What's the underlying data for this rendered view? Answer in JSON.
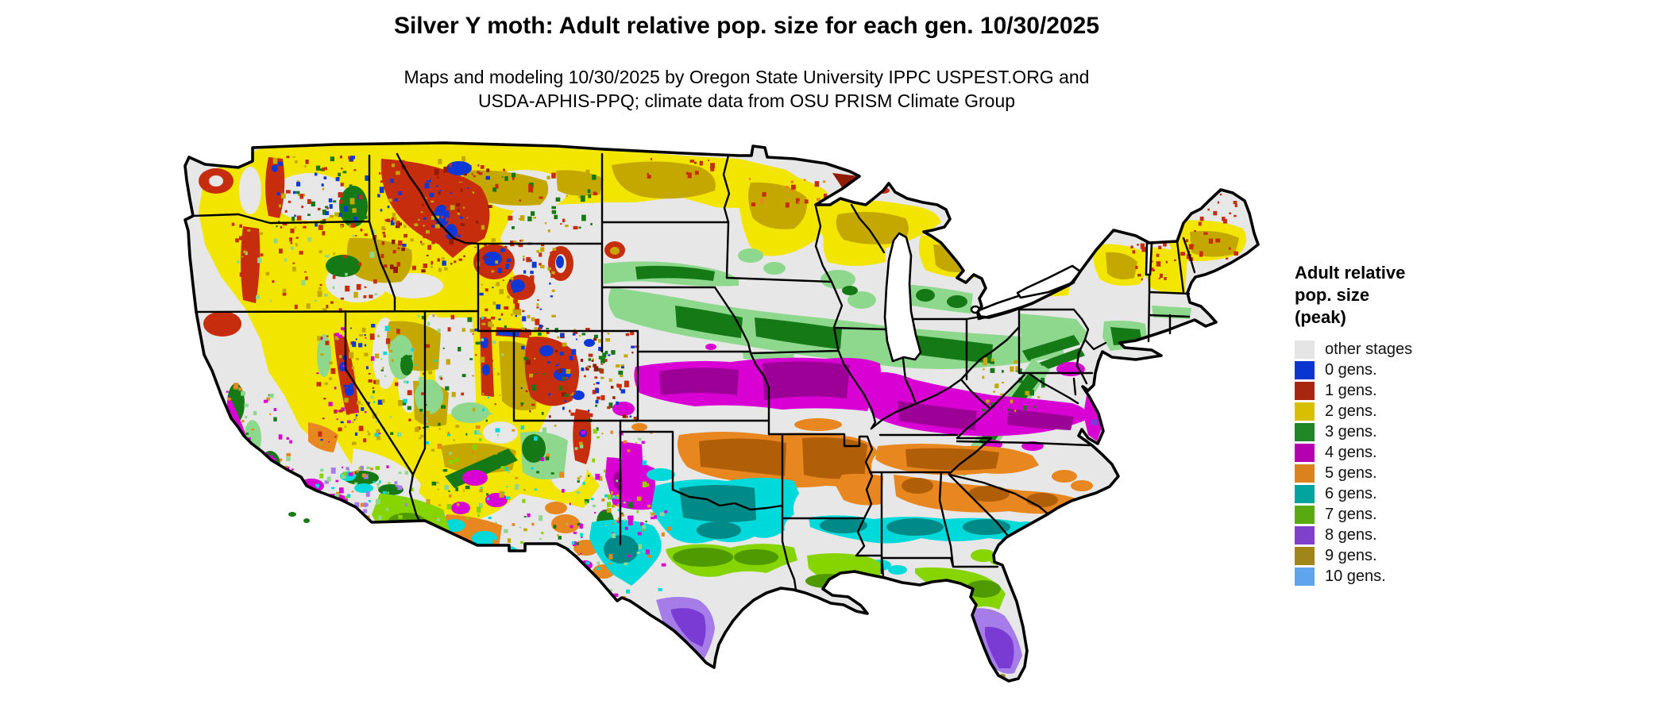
{
  "title": "Silver Y moth: Adult relative pop. size for each gen. 10/30/2025",
  "subtitle_line1": "Maps and modeling 10/30/2025 by Oregon State University IPPC USPEST.ORG and",
  "subtitle_line2": "USDA-APHIS-PPQ; climate data from OSU PRISM Climate Group",
  "legend": {
    "title_line1": "Adult relative",
    "title_line2": "pop. size",
    "title_line3": "(peak)",
    "items": [
      {
        "label": "other stages",
        "color": "#e5e5e5"
      },
      {
        "label": "0 gens.",
        "color": "#0a35cf"
      },
      {
        "label": "1 gens.",
        "color": "#a8260f"
      },
      {
        "label": "2 gens.",
        "color": "#d8c000"
      },
      {
        "label": "3 gens.",
        "color": "#1f8725"
      },
      {
        "label": "4 gens.",
        "color": "#b400ae"
      },
      {
        "label": "5 gens.",
        "color": "#db821e"
      },
      {
        "label": "6 gens.",
        "color": "#00a39e"
      },
      {
        "label": "7 gens.",
        "color": "#58aa10"
      },
      {
        "label": "8 gens.",
        "color": "#8040cc"
      },
      {
        "label": "9 gens.",
        "color": "#a08618"
      },
      {
        "label": "10 gens.",
        "color": "#5ea5ee"
      }
    ]
  },
  "palette": {
    "other": "#e7e7e7",
    "blue": "#0d38d8",
    "red": "#c62d0d",
    "red_dark": "#8f1d05",
    "yellow": "#f2e500",
    "khaki": "#c4a800",
    "green_light": "#8ed88e",
    "green_dark": "#157a15",
    "magenta": "#d800d2",
    "magenta_dark": "#9c0096",
    "orange": "#e8861f",
    "orange_dark": "#b05f08",
    "teal": "#00d9d9",
    "teal_dark": "#008a87",
    "yellow_green": "#86d400",
    "yellow_green_dark": "#4f9a00",
    "purple_light": "#a57ce8",
    "purple_dark": "#7a3bd4",
    "olive": "#a08618",
    "light_blue": "#5ea5ee"
  }
}
